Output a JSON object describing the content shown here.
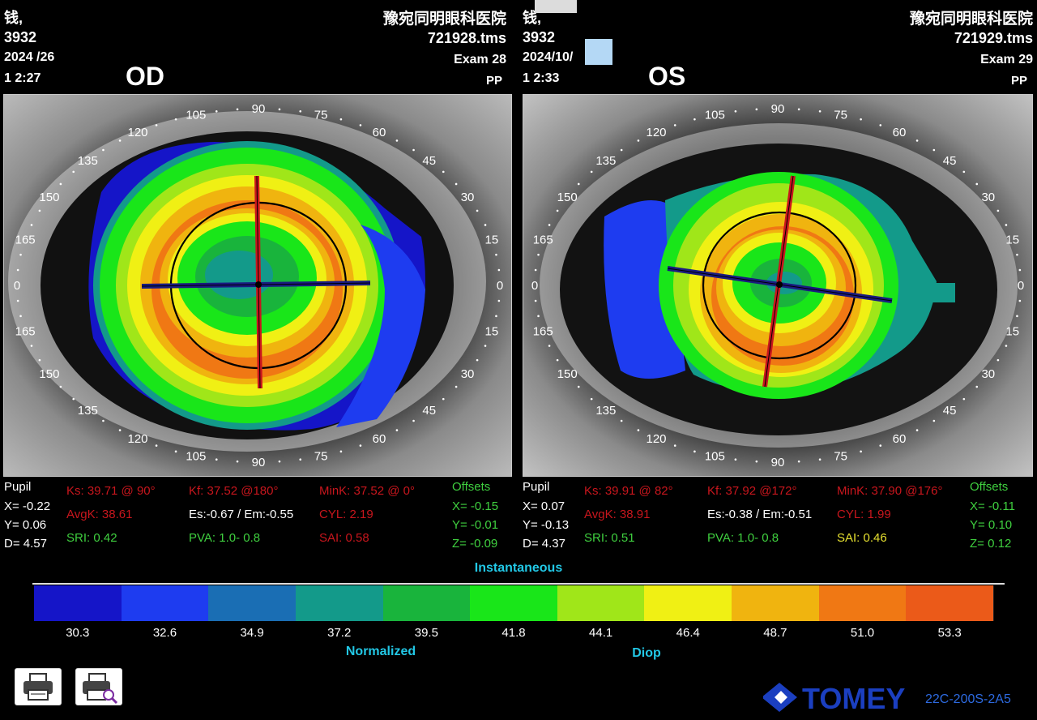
{
  "left": {
    "name": "钱,",
    "id": "3932",
    "date": "2024   /26",
    "time": "1   2:27",
    "clinic": "豫宛同明眼科医院",
    "file": "721928.tms",
    "exam": "Exam 28",
    "mode": "PP",
    "eye": "OD",
    "pupil": {
      "title": "Pupil",
      "x": "X= -0.22",
      "y": "Y=  0.06",
      "d": "D=  4.57"
    },
    "ks": "Ks: 39.71 @ 90°",
    "kf": "Kf: 37.52 @180°",
    "mink": "MinK: 37.52 @  0°",
    "avgk": "AvgK: 38.61",
    "es_em": "Es:-0.67 / Em:-0.55",
    "cyl": "CYL:  2.19",
    "sri": "SRI: 0.42",
    "pva": "PVA:  1.0-  0.8",
    "sai": "SAI: 0.58",
    "offsets": {
      "title": "Offsets",
      "x": "X= -0.15",
      "y": "Y= -0.01",
      "z": "Z= -0.09"
    }
  },
  "right": {
    "name": "钱,",
    "id": "3932",
    "date": "2024/10/",
    "time": "1   2:33",
    "clinic": "豫宛同明眼科医院",
    "file": "721929.tms",
    "exam": "Exam 29",
    "mode": "PP",
    "eye": "OS",
    "pupil": {
      "title": "Pupil",
      "x": "X=  0.07",
      "y": "Y= -0.13",
      "d": "D=  4.37"
    },
    "ks": "Ks: 39.91 @ 82°",
    "kf": "Kf: 37.92 @172°",
    "mink": "MinK: 37.90 @176°",
    "avgk": "AvgK: 38.91",
    "es_em": "Es:-0.38 / Em:-0.51",
    "cyl": "CYL:  1.99",
    "sri": "SRI: 0.51",
    "pva": "PVA:  1.0-  0.8",
    "sai": "SAI: 0.46",
    "offsets": {
      "title": "Offsets",
      "x": "X= -0.11",
      "y": "Y=  0.10",
      "z": "Z=  0.12"
    }
  },
  "dial": {
    "labels_left": [
      "0",
      "15",
      "30",
      "45",
      "60",
      "75",
      "90",
      "105",
      "120",
      "135",
      "150",
      "165",
      "0",
      "165",
      "150",
      "135",
      "120",
      "105",
      "90",
      "75",
      "60",
      "45",
      "30",
      "15"
    ],
    "labels_right": [
      "0",
      "15",
      "30",
      "45",
      "60",
      "75",
      "90",
      "105",
      "120",
      "135",
      "150",
      "165",
      "0",
      "165",
      "150",
      "135",
      "120",
      "105",
      "90",
      "75",
      "60",
      "45",
      "30",
      "15"
    ]
  },
  "legend": {
    "title": "Instantaneous",
    "normalized": "Normalized",
    "diop": "Diop",
    "colors": [
      "#1515c8",
      "#1e3cf0",
      "#1a6eb4",
      "#139a8a",
      "#19b43c",
      "#19e619",
      "#a0e619",
      "#f0f014",
      "#f0b40f",
      "#f07814",
      "#eb5a19"
    ],
    "values": [
      "30.3",
      "32.6",
      "34.9",
      "37.2",
      "39.5",
      "41.8",
      "44.1",
      "46.4",
      "48.7",
      "51.0",
      "53.3"
    ]
  },
  "footer": {
    "brand": "TOMEY",
    "version": "22C-200S-2A5"
  },
  "icons": {
    "print": "print-icon",
    "preview": "print-preview-icon"
  }
}
